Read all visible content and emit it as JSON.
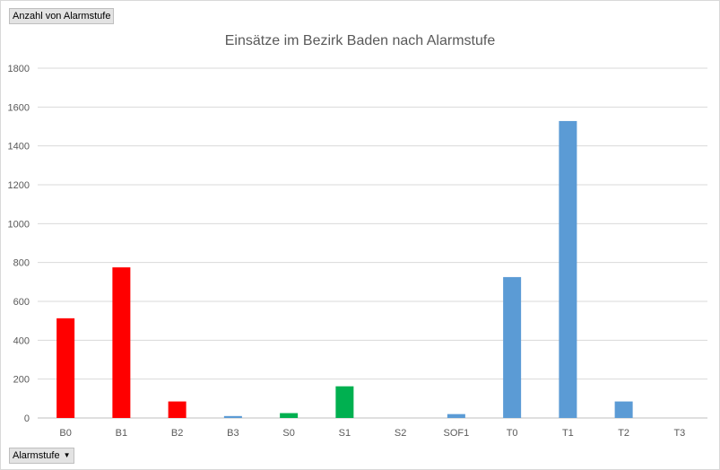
{
  "pivot": {
    "values_field": "Anzahl von Alarmstufe",
    "axis_field": "Alarmstufe",
    "dropdown_icon": "dropdown-arrow-icon"
  },
  "chart_data": {
    "type": "bar",
    "title": "Einsätze im Bezirk Baden nach Alarmstufe",
    "xlabel": "",
    "ylabel": "",
    "ylim": [
      0,
      1800
    ],
    "yticks": [
      0,
      200,
      400,
      600,
      800,
      1000,
      1200,
      1400,
      1600,
      1800
    ],
    "grid": true,
    "legend": "none",
    "categories": [
      "B0",
      "B1",
      "B2",
      "B3",
      "S0",
      "S1",
      "S2",
      "SOF1",
      "T0",
      "T1",
      "T2",
      "T3"
    ],
    "values": [
      513,
      775,
      85,
      10,
      25,
      163,
      0,
      20,
      725,
      1528,
      85,
      0
    ],
    "colors": [
      "#ff0000",
      "#ff0000",
      "#ff0000",
      "#5b9bd5",
      "#00b050",
      "#00b050",
      "#00b050",
      "#5b9bd5",
      "#5b9bd5",
      "#5b9bd5",
      "#5b9bd5",
      "#5b9bd5"
    ]
  }
}
